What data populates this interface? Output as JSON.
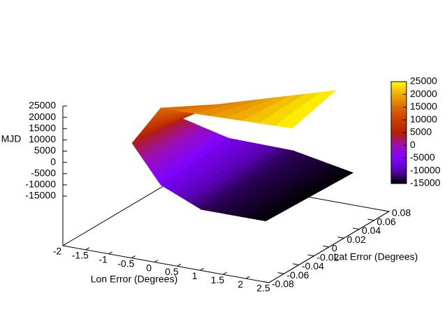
{
  "chart_data": {
    "type": "surface3d",
    "xlabel": "Lon Error (Degrees)",
    "ylabel": "Lat Error (Degrees)",
    "zlabel": "MJD",
    "xlim": [
      -2,
      2.5
    ],
    "xticks": [
      -2,
      -1.5,
      -1,
      -0.5,
      0,
      0.5,
      1,
      1.5,
      2,
      2.5
    ],
    "ylim": [
      -0.08,
      0.08
    ],
    "yticks": [
      -0.08,
      -0.06,
      -0.04,
      -0.02,
      0,
      0.02,
      0.04,
      0.06,
      0.08
    ],
    "zlim": [
      -15000,
      25000
    ],
    "zticks": [
      -15000,
      -10000,
      -5000,
      0,
      5000,
      10000,
      15000,
      20000,
      25000
    ],
    "cblim": [
      -15000,
      25000
    ],
    "cbticks": [
      -15000,
      -10000,
      -5000,
      0,
      5000,
      10000,
      15000,
      20000,
      25000
    ],
    "palette": [
      "#000000",
      "#5a00b4",
      "#8004ff",
      "#9c0eb4",
      "#b42000",
      "#c93e00",
      "#dd6b00",
      "#eeab00",
      "#ffff00"
    ],
    "x": [
      [
        2.2,
        2.1
      ],
      [
        0.9,
        0.7
      ],
      [
        -0.35,
        -0.04
      ],
      [
        -0.92,
        -1.19
      ],
      [
        -0.11,
        -1.0
      ],
      [
        2.13,
        2.4
      ]
    ],
    "y": [
      [
        0.05,
        -0.06
      ],
      [
        0.05,
        -0.06
      ],
      [
        0.04,
        -0.069
      ],
      [
        0.013,
        -0.037
      ],
      [
        0.0085,
        -0.0106
      ],
      [
        0.031,
        -0.043
      ]
    ],
    "z": [
      [
        -15000,
        -15000
      ],
      [
        -10000,
        -15000
      ],
      [
        -7000,
        -5000
      ],
      [
        5000,
        3000
      ],
      [
        15000,
        14000
      ],
      [
        25000,
        24000
      ]
    ]
  }
}
